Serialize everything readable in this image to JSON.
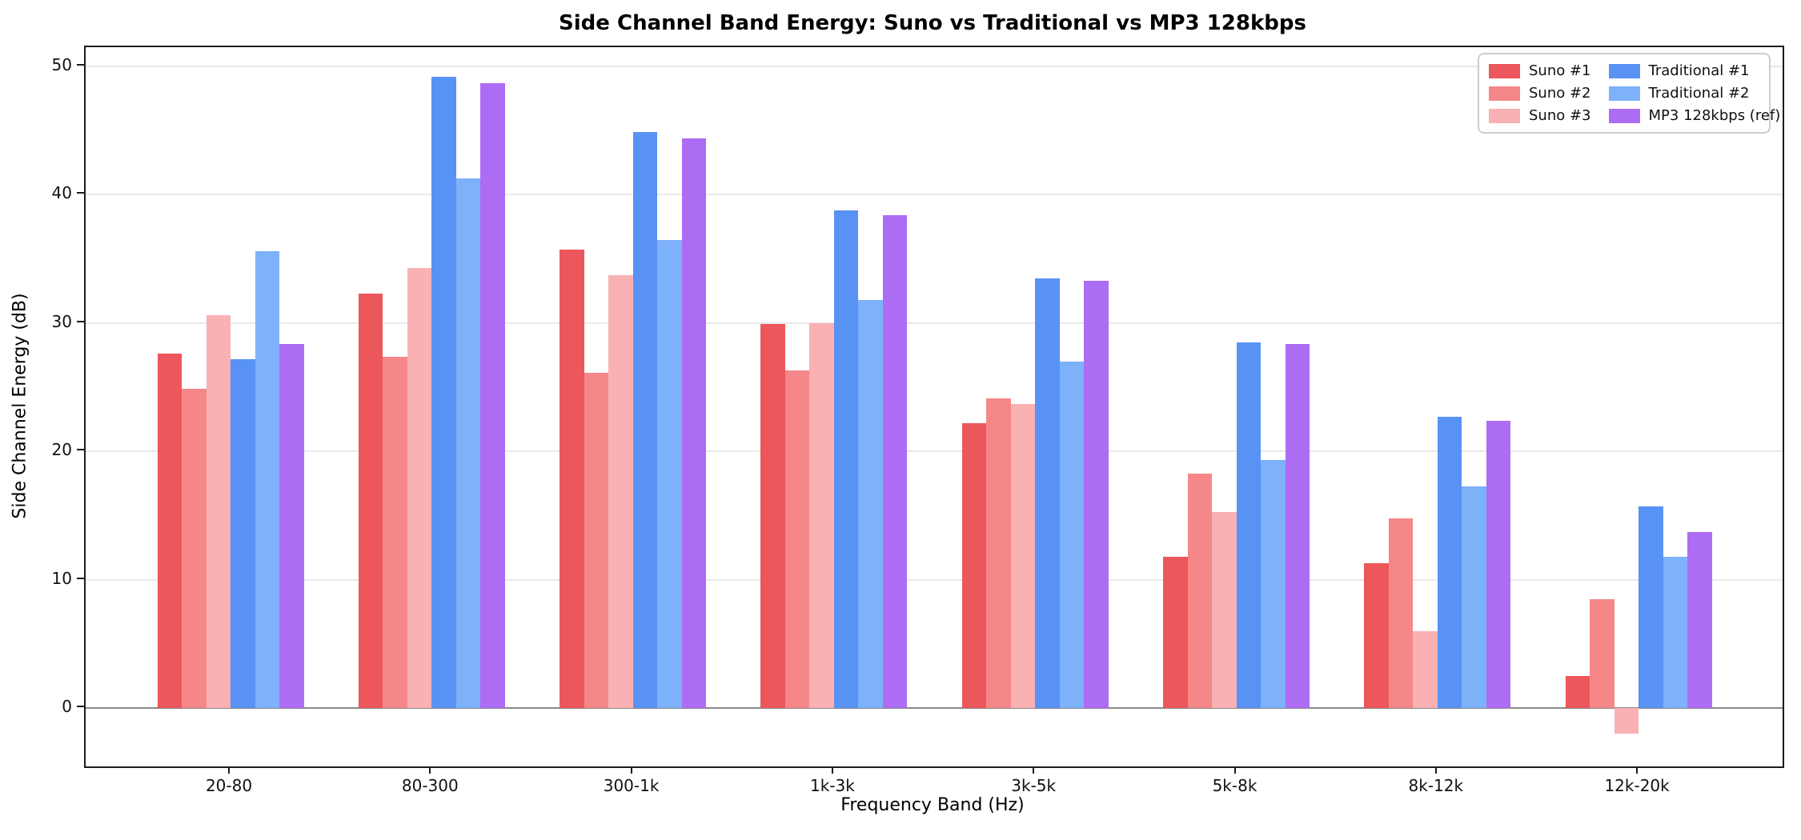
{
  "chart_data": {
    "type": "bar",
    "title": "Side Channel Band Energy: Suno vs Traditional vs MP3 128kbps",
    "xlabel": "Frequency Band (Hz)",
    "ylabel": "Side Channel Energy (dB)",
    "categories": [
      "20-80",
      "80-300",
      "300-1k",
      "1k-3k",
      "3k-5k",
      "5k-8k",
      "8k-12k",
      "12k-20k"
    ],
    "series": [
      {
        "name": "Suno #1",
        "color": "#ec575b",
        "values": [
          27.6,
          32.3,
          35.7,
          29.9,
          22.2,
          11.8,
          11.3,
          2.5
        ]
      },
      {
        "name": "Suno #2",
        "color": "#f58789",
        "values": [
          24.9,
          27.4,
          26.1,
          26.3,
          24.1,
          18.3,
          14.8,
          8.5
        ]
      },
      {
        "name": "Suno #3",
        "color": "#f9b1b3",
        "values": [
          30.6,
          34.3,
          33.7,
          30.0,
          23.7,
          15.3,
          6.0,
          -2.0
        ]
      },
      {
        "name": "Traditional #1",
        "color": "#5892f5",
        "values": [
          27.2,
          49.2,
          44.9,
          38.8,
          33.5,
          28.5,
          22.7,
          15.7
        ]
      },
      {
        "name": "Traditional #2",
        "color": "#7db1fa",
        "values": [
          35.6,
          41.3,
          36.5,
          31.8,
          27.0,
          19.3,
          17.3,
          11.8
        ]
      },
      {
        "name": "MP3 128kbps (ref)",
        "color": "#ad6cf4",
        "values": [
          28.4,
          48.7,
          44.4,
          38.4,
          33.3,
          28.4,
          22.4,
          13.7
        ]
      }
    ],
    "yticks": [
      0,
      10,
      20,
      30,
      40,
      50
    ],
    "ylim": [
      -4.55,
      51.5
    ],
    "grid": true,
    "legend_position": "upper right",
    "grid_color": "#e9e9e9",
    "zero_line_color": "#8a8a8a"
  }
}
